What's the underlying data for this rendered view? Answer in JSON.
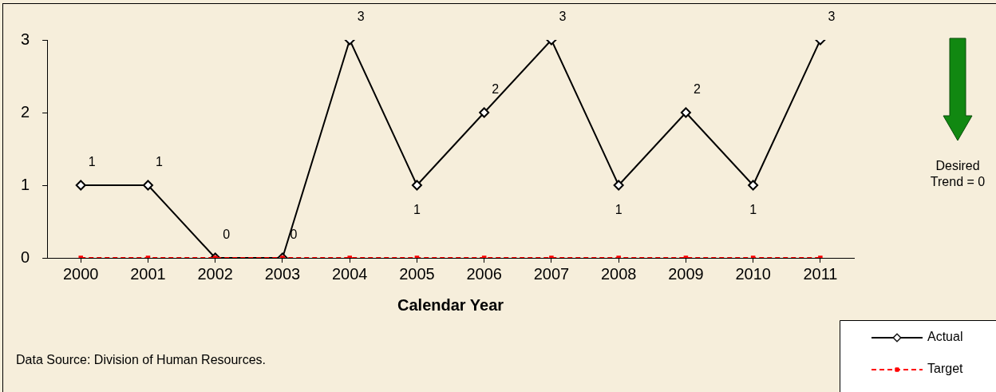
{
  "chart_data": {
    "type": "line",
    "xlabel": "Calendar Year",
    "categories": [
      "2000",
      "2001",
      "2002",
      "2003",
      "2004",
      "2005",
      "2006",
      "2007",
      "2008",
      "2009",
      "2010",
      "2011"
    ],
    "series": [
      {
        "name": "Actual",
        "color": "#000000",
        "marker": "diamond",
        "line_style": "solid",
        "values": [
          1,
          1,
          0,
          0,
          3,
          1,
          2,
          3,
          1,
          2,
          1,
          3
        ],
        "value_labels": [
          "1",
          "1",
          "0",
          "0",
          "3",
          "1",
          "2",
          "3",
          "1",
          "2",
          "1",
          "3"
        ]
      },
      {
        "name": "Target",
        "color": "#ff0000",
        "marker": "square",
        "line_style": "dashed",
        "values": [
          0,
          0,
          0,
          0,
          0,
          0,
          0,
          0,
          0,
          0,
          0,
          0
        ]
      }
    ],
    "ylim": [
      0,
      3
    ],
    "yticks": [
      0,
      1,
      2,
      3
    ],
    "grid": false,
    "legend": "bottom right",
    "annotations": [
      "Data Source: Division of Human Resources.",
      "Desired Trend = 0"
    ]
  }
}
